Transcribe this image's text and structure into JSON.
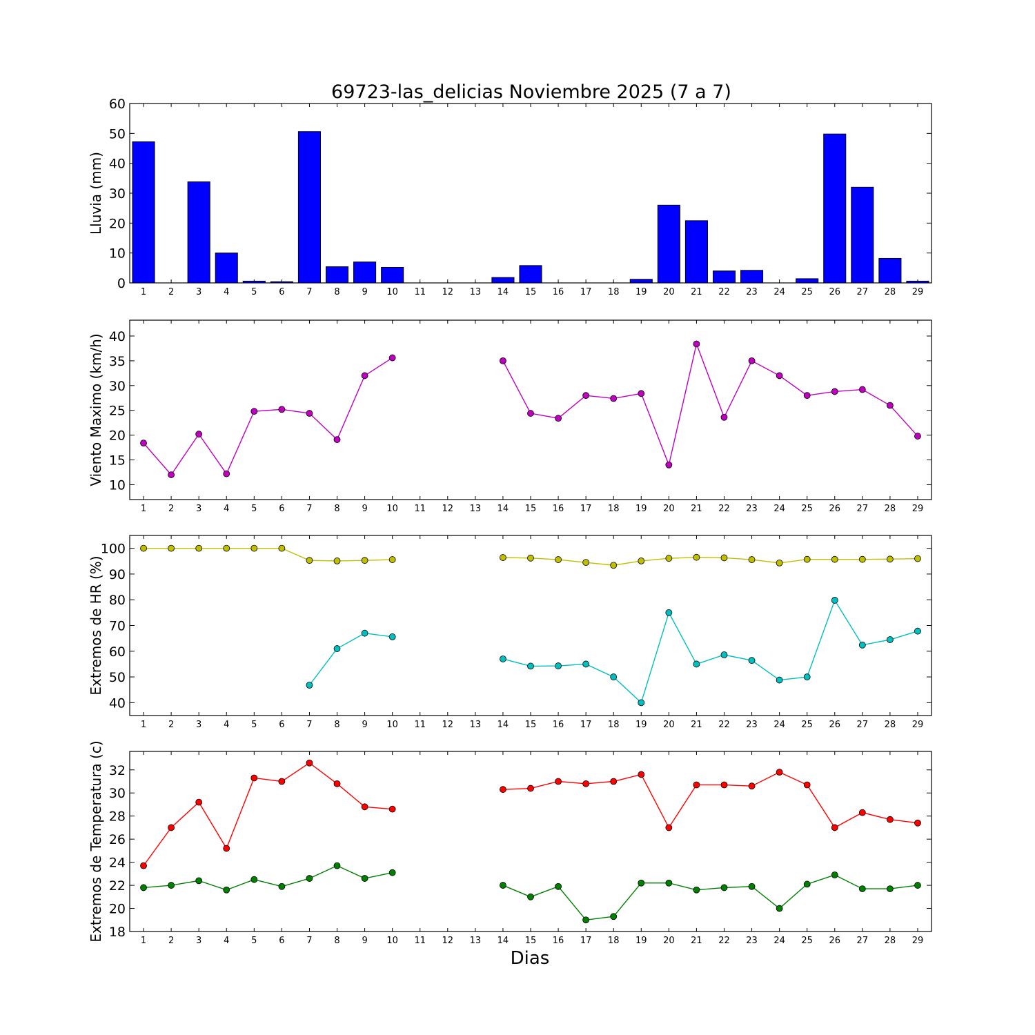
{
  "title": "69723-las_delicias Noviembre 2025  (7 a 7)",
  "xlabel": "Dias",
  "chart_data": [
    {
      "type": "bar",
      "ylabel": "Lluvia (mm)",
      "ylim": [
        0,
        60
      ],
      "yticks": [
        0,
        10,
        20,
        30,
        40,
        50,
        60
      ],
      "categories": [
        1,
        2,
        3,
        4,
        5,
        6,
        7,
        8,
        9,
        10,
        11,
        12,
        13,
        14,
        15,
        16,
        17,
        18,
        19,
        20,
        21,
        22,
        23,
        24,
        25,
        26,
        27,
        28,
        29
      ],
      "values": [
        47.2,
        0,
        33.8,
        10,
        0.6,
        0.4,
        50.6,
        5.4,
        7,
        5.2,
        null,
        null,
        null,
        1.8,
        5.8,
        0,
        0,
        0,
        1.2,
        26,
        20.8,
        4,
        4.2,
        0,
        1.4,
        49.8,
        32,
        8.2,
        0.6
      ],
      "color": "#0000ff"
    },
    {
      "type": "line",
      "ylabel": "Viento Maximo (km/h)",
      "ylim": [
        7,
        43.2
      ],
      "yticks": [
        10,
        15,
        20,
        25,
        30,
        35,
        40
      ],
      "series": [
        {
          "name": "viento_max",
          "color": "#bf00bf",
          "values": [
            18.4,
            12,
            20.2,
            12.2,
            24.8,
            25.2,
            24.4,
            19.1,
            32,
            35.6,
            null,
            null,
            null,
            35,
            24.4,
            23.4,
            28,
            27.4,
            28.4,
            14,
            38.4,
            23.6,
            35,
            32,
            28,
            28.8,
            29.2,
            26,
            19.8
          ]
        }
      ]
    },
    {
      "type": "line",
      "ylabel": "Extremos de HR (%)",
      "ylim": [
        35,
        105
      ],
      "yticks": [
        40,
        50,
        60,
        70,
        80,
        90,
        100
      ],
      "series": [
        {
          "name": "HR_max",
          "color": "#bfbf00",
          "values": [
            100,
            100,
            100,
            100,
            100,
            100,
            95.3,
            95.1,
            95.3,
            95.6,
            null,
            null,
            null,
            96.4,
            96.2,
            95.6,
            94.5,
            93.4,
            95.1,
            96.1,
            96.5,
            96.3,
            95.6,
            94.3,
            95.7,
            95.7,
            95.7,
            95.8,
            96
          ],
          "marker": "#bfbf00"
        },
        {
          "name": "HR_min",
          "color": "#00bfbf",
          "values": [
            null,
            null,
            null,
            null,
            null,
            null,
            46.8,
            61,
            67,
            65.6,
            null,
            null,
            null,
            57,
            54.2,
            54.3,
            55,
            50,
            40,
            75,
            55,
            58.6,
            56.4,
            48.8,
            50,
            79.8,
            62.4,
            64.5,
            67.8
          ]
        }
      ]
    },
    {
      "type": "line",
      "ylabel": "Extremos de Temperatura (c)",
      "ylim": [
        18,
        33.6
      ],
      "yticks": [
        18,
        20,
        22,
        24,
        26,
        28,
        30,
        32
      ],
      "series": [
        {
          "name": "T_max",
          "color": "#ff0000",
          "values": [
            23.7,
            27,
            29.2,
            25.2,
            31.3,
            31,
            32.6,
            30.8,
            28.8,
            28.6,
            null,
            null,
            null,
            30.3,
            30.4,
            31,
            30.8,
            31,
            31.6,
            27,
            30.7,
            30.7,
            30.6,
            31.8,
            30.7,
            27,
            28.3,
            27.7,
            27.4
          ]
        },
        {
          "name": "T_min",
          "color": "#008000",
          "values": [
            21.8,
            22,
            22.4,
            21.6,
            22.5,
            21.9,
            22.6,
            23.7,
            22.6,
            23.1,
            null,
            null,
            null,
            22,
            21,
            21.9,
            19,
            19.3,
            22.2,
            22.2,
            21.6,
            21.8,
            21.9,
            20,
            22.1,
            22.9,
            21.7,
            21.7,
            22
          ]
        }
      ]
    }
  ]
}
